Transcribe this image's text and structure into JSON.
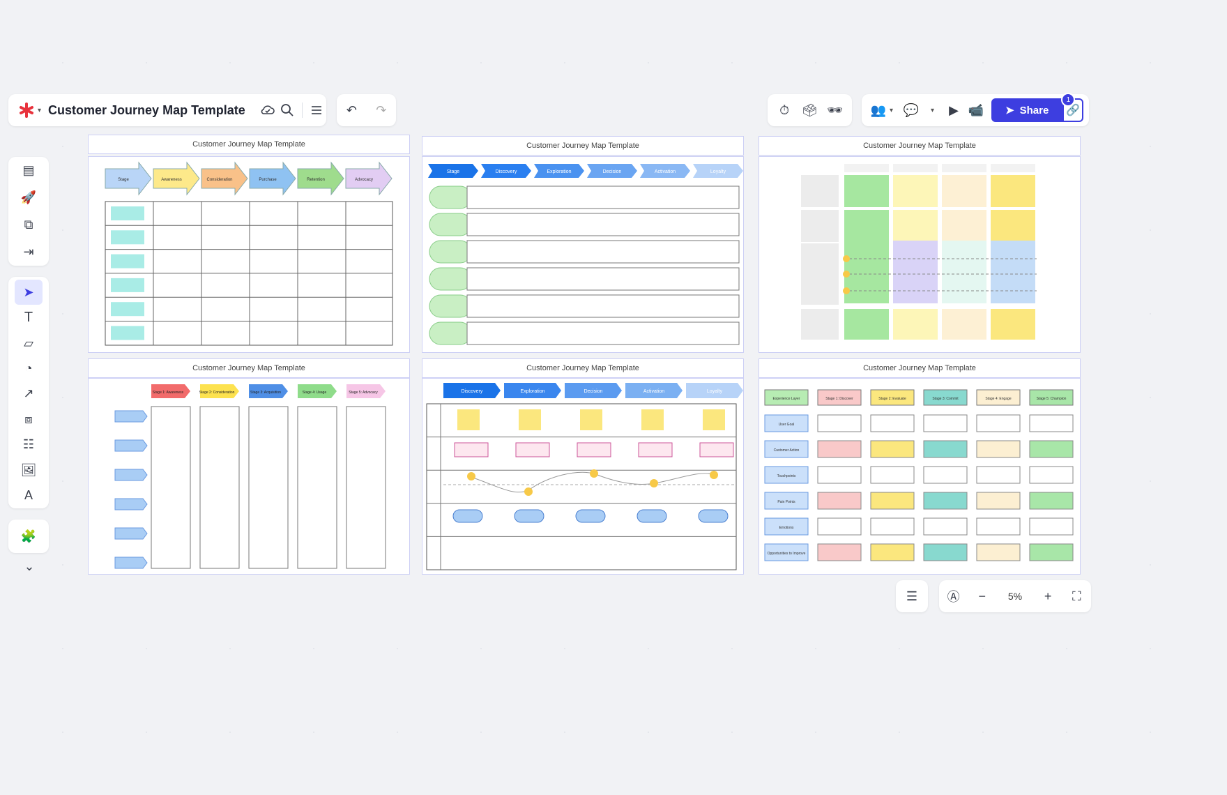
{
  "board": {
    "title": "Customer Journey Map Template",
    "frame_title": "Customer Journey Map Template"
  },
  "toolbar": {
    "share_label": "Share",
    "share_count": "1"
  },
  "zoom": {
    "value": "5%"
  },
  "frame1": {
    "stages": [
      "Stage",
      "Awareness",
      "Consideration",
      "Purchase",
      "Retention",
      "Advocacy"
    ],
    "colors": [
      "#b9d5f7",
      "#fde98a",
      "#f9c189",
      "#8fc2f2",
      "#9fdc8d",
      "#e2cdf3"
    ]
  },
  "frame2": {
    "stages": [
      "Stage",
      "Discovery",
      "Exploration",
      "Decision",
      "Activation",
      "Loyalty"
    ],
    "colors": [
      "#1a73e8",
      "#2a7ff0",
      "#4a92f0",
      "#6aa5f2",
      "#8ab8f4",
      "#b7d3f8"
    ]
  },
  "frame4": {
    "stages": [
      "Stage 1: Awareness",
      "Stage 2: Consideration",
      "Stage 3: Acquisition",
      "Stage 4: Usage",
      "Stage 5: Advocacy"
    ],
    "colors": [
      "#f26b6b",
      "#fde24f",
      "#4f8fe6",
      "#8fdc8a",
      "#f6c6e6"
    ]
  },
  "frame5": {
    "stages": [
      "Discovery",
      "Exploration",
      "Decision",
      "Activation",
      "Loyalty"
    ]
  },
  "frame6": {
    "headers": [
      "Experience Layer",
      "Stage 1: Discover",
      "Stage 2: Evaluate",
      "Stage 3: Commit",
      "Stage 4: Engage",
      "Stage 5: Champion"
    ],
    "rows": [
      "User Goal",
      "Customer Action",
      "Touchpoints",
      "Pain Points",
      "Emotions",
      "Opportunities to Improve"
    ],
    "colors": [
      "#f9c9c9",
      "#fbe77e",
      "#88d9cf",
      "#fcefd2",
      "#a8e6a8"
    ]
  }
}
